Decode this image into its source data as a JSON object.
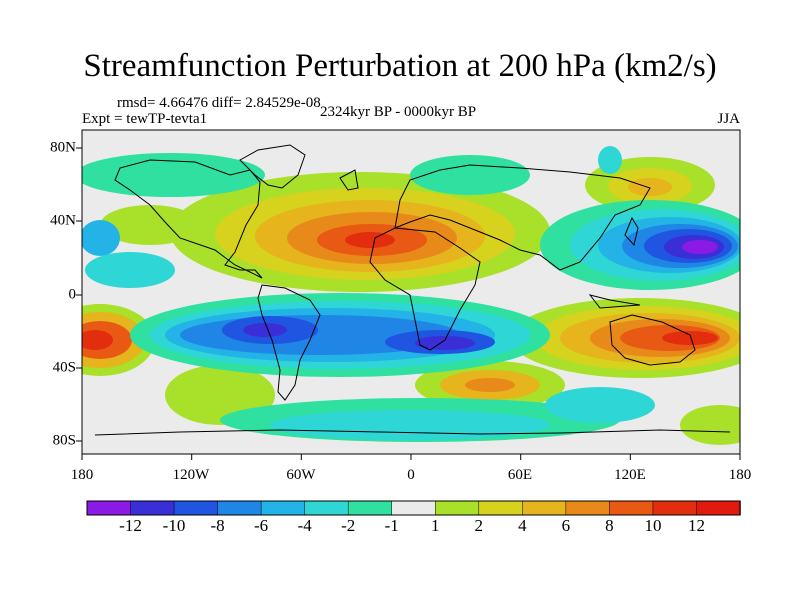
{
  "title": "Streamfunction Perturbation at 200 hPa (km2/s)",
  "stats": "rmsd= 4.66476 diff= 2.84529e-08",
  "experiment": "Expt = tewTP-tevta1",
  "period": "2324kyr BP - 0000kyr BP",
  "season": "JJA",
  "lon_ticks": [
    "180",
    "120W",
    "60W",
    "0",
    "60E",
    "120E",
    "180"
  ],
  "lat_ticks": [
    "80N",
    "40N",
    "0",
    "40S",
    "80S"
  ],
  "colorbar": {
    "labels": [
      "-12",
      "-10",
      "-8",
      "-6",
      "-4",
      "-2",
      "-1",
      "1",
      "2",
      "4",
      "6",
      "8",
      "10",
      "12"
    ],
    "colors": [
      "#8a1be6",
      "#3a2fd6",
      "#1f55e0",
      "#1f86e6",
      "#23b3e6",
      "#2fd6d6",
      "#2fe0a0",
      "#ebebeb",
      "#a8e02a",
      "#d7d21d",
      "#e6b41c",
      "#e88a1a",
      "#e85a14",
      "#e22d0f",
      "#e01a0f"
    ]
  }
}
